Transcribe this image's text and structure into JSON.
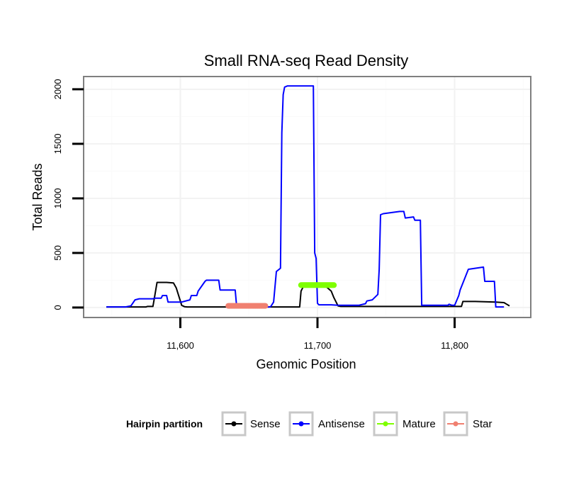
{
  "chart_data": {
    "type": "line",
    "title": "Small RNA-seq Read Density",
    "xlabel": "Genomic Position",
    "ylabel": "Total Reads",
    "xlim": [
      11530,
      11855
    ],
    "ylim": [
      -85,
      2110
    ],
    "x_ticks": [
      11600,
      11700,
      11800
    ],
    "x_tick_labels": [
      "11,600",
      "11,700",
      "11,800"
    ],
    "y_ticks": [
      0,
      500,
      1000,
      1500,
      2000
    ],
    "y_tick_labels": [
      "0",
      "500",
      "1000",
      "1500",
      "2000"
    ],
    "grid": true,
    "legend": {
      "title": "Hairpin partition",
      "position": "bottom",
      "entries": [
        "Sense",
        "Antisense",
        "Mature",
        "Star"
      ]
    },
    "series": [
      {
        "name": "Sense",
        "color": "#000000",
        "style": "line",
        "x": [
          11546,
          11560,
          11570,
          11575,
          11576,
          11580,
          11581,
          11583,
          11590,
          11595,
          11597,
          11600,
          11601,
          11603,
          11605,
          11606,
          11610,
          11620,
          11630,
          11640,
          11650,
          11660,
          11670,
          11680,
          11687,
          11688,
          11690,
          11695,
          11700,
          11705,
          11710,
          11712,
          11715,
          11717,
          11720,
          11730,
          11740,
          11750,
          11760,
          11770,
          11780,
          11790,
          11800,
          11805,
          11806,
          11815,
          11830,
          11836,
          11838,
          11840
        ],
        "y": [
          5,
          5,
          5,
          5,
          10,
          10,
          80,
          230,
          230,
          225,
          180,
          60,
          20,
          8,
          5,
          5,
          5,
          5,
          5,
          5,
          5,
          5,
          5,
          5,
          5,
          150,
          200,
          205,
          205,
          205,
          150,
          90,
          15,
          10,
          10,
          10,
          10,
          10,
          10,
          10,
          10,
          10,
          10,
          10,
          55,
          55,
          50,
          45,
          30,
          15
        ]
      },
      {
        "name": "Antisense",
        "color": "#0000ff",
        "style": "line",
        "x": [
          11546,
          11560,
          11564,
          11567,
          11570,
          11580,
          11581,
          11586,
          11587,
          11590,
          11591,
          11600,
          11601,
          11607,
          11608,
          11612,
          11613,
          11618,
          11619,
          11628,
          11629,
          11640,
          11641,
          11645,
          11646,
          11650,
          11660,
          11665,
          11666,
          11668,
          11670,
          11673,
          11674,
          11675,
          11676,
          11678,
          11680,
          11690,
          11697,
          11698,
          11699,
          11700,
          11701,
          11710,
          11715,
          11730,
          11735,
          11736,
          11740,
          11744,
          11745,
          11746,
          11748,
          11760,
          11763,
          11764,
          11770,
          11771,
          11775,
          11776,
          11790,
          11795,
          11796,
          11798,
          11800,
          11801,
          11803,
          11804,
          11810,
          11821,
          11822,
          11829,
          11830,
          11836
        ],
        "y": [
          5,
          5,
          15,
          70,
          80,
          80,
          85,
          85,
          110,
          110,
          50,
          50,
          50,
          70,
          110,
          110,
          150,
          240,
          250,
          250,
          160,
          160,
          20,
          20,
          5,
          5,
          5,
          5,
          10,
          50,
          330,
          360,
          1600,
          1950,
          2020,
          2030,
          2030,
          2030,
          2030,
          500,
          450,
          40,
          25,
          25,
          20,
          20,
          35,
          60,
          70,
          120,
          350,
          850,
          860,
          880,
          880,
          820,
          830,
          800,
          800,
          20,
          20,
          20,
          30,
          20,
          20,
          50,
          110,
          160,
          350,
          370,
          240,
          240,
          5,
          5
        ]
      },
      {
        "name": "Mature",
        "color": "#7fff00",
        "style": "points",
        "x": [
          11688,
          11712
        ],
        "y": [
          205,
          205
        ]
      },
      {
        "name": "Star",
        "color": "#f08070",
        "style": "points",
        "x": [
          11635,
          11662
        ],
        "y": [
          15,
          15
        ]
      }
    ]
  }
}
